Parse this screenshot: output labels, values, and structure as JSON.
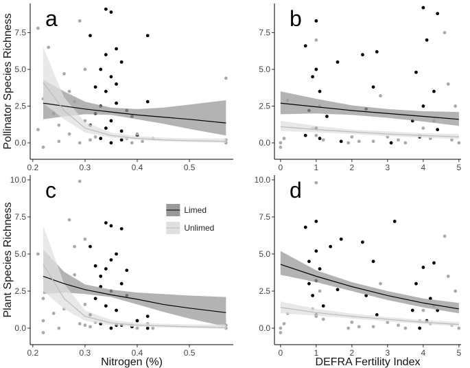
{
  "chart_data": [
    {
      "type": "scatter",
      "label": "a",
      "ylabel": "Pollinator Species Richness",
      "xlim": [
        0.195,
        0.584
      ],
      "xticks": [
        0.2,
        0.3,
        0.4,
        0.5
      ],
      "ylim": [
        -1.12,
        9.49
      ],
      "yticks": [
        {
          "value": 0,
          "label": "0.0"
        },
        2.5,
        {
          "value": 5,
          "label": "5.0"
        },
        7.5
      ],
      "series": [
        {
          "color": "#000000",
          "x": [
            0.31,
            0.32,
            0.33,
            0.33,
            0.34,
            0.34,
            0.34,
            0.35,
            0.35,
            0.35,
            0.36,
            0.36,
            0.37,
            0.37,
            0.38,
            0.32,
            0.31,
            0.34,
            0.36,
            0.39,
            0.4,
            0.42,
            0.42,
            0.33,
            0.35,
            0.37
          ],
          "values": [
            7.3,
            2.0,
            5.0,
            0.3,
            9.1,
            3.5,
            1.0,
            8.9,
            4.5,
            0.0,
            6.4,
            2.7,
            5.5,
            0.8,
            2.2,
            3.8,
            1.2,
            6.0,
            4.0,
            1.8,
            0.5,
            7.3,
            2.8,
            2.5,
            1.5,
            0.2
          ]
        },
        {
          "color": "#aaaaaa",
          "x": [
            0.21,
            0.21,
            0.22,
            0.22,
            0.23,
            0.24,
            0.25,
            0.26,
            0.27,
            0.27,
            0.28,
            0.29,
            0.29,
            0.3,
            0.3,
            0.31,
            0.32,
            0.38,
            0.39,
            0.4,
            0.41,
            0.43,
            0.57,
            0.57,
            0.57,
            0.25
          ],
          "values": [
            7.8,
            0.9,
            -0.3,
            3.0,
            6.5,
            2.0,
            0.1,
            4.7,
            3.5,
            0.6,
            2.8,
            8.3,
            0.0,
            5.0,
            1.5,
            0.2,
            0.4,
            0.3,
            0.0,
            0.6,
            0.1,
            0.3,
            0.0,
            0.2,
            4.4,
            1.2
          ]
        }
      ],
      "fits": [
        {
          "color": "#000000",
          "fill": "#9a9a9a",
          "x": [
            0.22,
            0.26,
            0.3,
            0.35,
            0.4,
            0.45,
            0.5,
            0.57
          ],
          "values": [
            2.7,
            2.5,
            2.3,
            2.1,
            1.9,
            1.75,
            1.6,
            1.35
          ],
          "lower": [
            1.6,
            1.8,
            1.95,
            1.9,
            1.6,
            1.3,
            0.95,
            0.5
          ],
          "upper": [
            4.3,
            3.5,
            2.8,
            2.4,
            2.3,
            2.4,
            2.6,
            2.9
          ]
        },
        {
          "color": "#bbbbbb",
          "fill": "#e0e0e0",
          "x": [
            0.22,
            0.26,
            0.3,
            0.35,
            0.4,
            0.45,
            0.5,
            0.57
          ],
          "values": [
            4.1,
            2.2,
            1.0,
            0.5,
            0.3,
            0.2,
            0.15,
            0.1
          ],
          "lower": [
            2.7,
            1.6,
            0.7,
            0.35,
            0.2,
            0.1,
            0.05,
            0.0
          ],
          "upper": [
            6.5,
            3.1,
            1.4,
            0.7,
            0.45,
            0.35,
            0.3,
            0.3
          ]
        }
      ]
    },
    {
      "type": "scatter",
      "label": "b",
      "xlim": [
        -0.17,
        5.06
      ],
      "xticks": [
        0,
        1,
        2,
        3,
        4,
        5
      ],
      "ylim": [
        -1.12,
        9.49
      ],
      "yticks": [
        {
          "value": 0,
          "label": "0.0"
        },
        2.5,
        {
          "value": 5,
          "label": "5.0"
        },
        7.5
      ],
      "series": [
        {
          "color": "#000000",
          "x": [
            0.7,
            0.7,
            0.8,
            0.9,
            1.0,
            1.0,
            1.0,
            1.1,
            1.1,
            1.3,
            1.6,
            1.7,
            2.3,
            2.4,
            2.6,
            2.7,
            3.1,
            3.7,
            3.8,
            3.9,
            4.0,
            4.0,
            4.1,
            4.3,
            4.4,
            4.4
          ],
          "values": [
            6.6,
            0.5,
            2.2,
            4.5,
            8.3,
            5.0,
            1.0,
            3.5,
            0.3,
            1.8,
            5.5,
            0.1,
            6.0,
            2.3,
            3.8,
            6.2,
            0.0,
            1.5,
            4.8,
            0.4,
            9.2,
            2.5,
            7.0,
            3.5,
            8.8,
            0.9
          ]
        },
        {
          "color": "#aaaaaa",
          "x": [
            0.0,
            0.1,
            0.0,
            0.9,
            1.0,
            1.1,
            1.2,
            1.9,
            2.0,
            2.6,
            2.8,
            3.3,
            3.5,
            3.9,
            4.2,
            4.3,
            4.6,
            4.7,
            4.8,
            4.9,
            5.0,
            1.0,
            0.2,
            3.0,
            4.0,
            2.2
          ],
          "values": [
            0.0,
            0.3,
            -0.3,
            1.0,
            7.0,
            2.5,
            0.2,
            0.0,
            0.4,
            0.1,
            3.2,
            0.2,
            0.0,
            0.5,
            0.3,
            1.5,
            7.5,
            4.0,
            0.2,
            2.5,
            0.0,
            0.5,
            2.9,
            0.4,
            1.0,
            0.1
          ]
        }
      ],
      "fits": [
        {
          "color": "#000000",
          "fill": "#9a9a9a",
          "x": [
            0,
            1,
            2,
            3,
            4,
            5
          ],
          "values": [
            2.7,
            2.45,
            2.2,
            2.0,
            1.8,
            1.6
          ],
          "lower": [
            1.95,
            2.0,
            1.9,
            1.7,
            1.45,
            1.15
          ],
          "upper": [
            3.5,
            3.0,
            2.55,
            2.3,
            2.15,
            2.1
          ]
        },
        {
          "color": "#bbbbbb",
          "fill": "#e0e0e0",
          "x": [
            0,
            1,
            2,
            3,
            4,
            5
          ],
          "values": [
            1.1,
            0.9,
            0.75,
            0.6,
            0.5,
            0.4
          ],
          "lower": [
            0.8,
            0.72,
            0.6,
            0.45,
            0.35,
            0.25
          ],
          "upper": [
            1.5,
            1.15,
            0.9,
            0.78,
            0.65,
            0.6
          ]
        }
      ]
    },
    {
      "type": "scatter",
      "label": "c",
      "ylabel": "Plant Species Richness",
      "xlabel": "Nitrogen (%)",
      "legend": "top-right",
      "xlim": [
        0.195,
        0.584
      ],
      "xticks": [
        0.2,
        0.3,
        0.4,
        0.5
      ],
      "ylim": [
        -1.11,
        10.32
      ],
      "yticks": [
        {
          "value": 0,
          "label": "0.0"
        },
        2.5,
        {
          "value": 5,
          "label": "5.0"
        },
        7.5,
        {
          "value": 10,
          "label": "10.0"
        }
      ],
      "series": [
        {
          "name": "Limed",
          "color": "#000000",
          "x": [
            0.31,
            0.32,
            0.33,
            0.33,
            0.34,
            0.34,
            0.35,
            0.35,
            0.35,
            0.36,
            0.36,
            0.37,
            0.37,
            0.38,
            0.32,
            0.34,
            0.36,
            0.38,
            0.4,
            0.42,
            0.42,
            0.33,
            0.35,
            0.37,
            0.31,
            0.39
          ],
          "values": [
            5.5,
            2.0,
            3.5,
            0.3,
            7.1,
            4.0,
            6.9,
            2.5,
            0.0,
            5.0,
            1.2,
            6.7,
            3.0,
            2.2,
            4.2,
            1.5,
            0.2,
            3.9,
            0.5,
            0.8,
            0.0,
            2.8,
            4.6,
            0.2,
            0.9,
            0.1
          ]
        },
        {
          "name": "Unlimed",
          "color": "#aaaaaa",
          "x": [
            0.21,
            0.22,
            0.22,
            0.23,
            0.24,
            0.25,
            0.26,
            0.27,
            0.28,
            0.29,
            0.29,
            0.3,
            0.3,
            0.31,
            0.32,
            0.39,
            0.4,
            0.42,
            0.43,
            0.57,
            0.57,
            0.26,
            0.28,
            0.24,
            0.3,
            0.22
          ],
          "values": [
            5.0,
            -0.3,
            2.0,
            4.8,
            1.0,
            0.0,
            2.7,
            7.3,
            3.6,
            9.9,
            0.3,
            6.0,
            1.6,
            0.1,
            0.4,
            0.2,
            0.0,
            0.3,
            0.0,
            0.0,
            0.2,
            1.3,
            5.5,
            3.2,
            0.2,
            0.5
          ]
        }
      ],
      "fits": [
        {
          "color": "#000000",
          "fill": "#9a9a9a",
          "x": [
            0.22,
            0.26,
            0.3,
            0.35,
            0.4,
            0.45,
            0.5,
            0.57
          ],
          "values": [
            3.5,
            3.0,
            2.6,
            2.25,
            1.95,
            1.6,
            1.35,
            1.05
          ],
          "lower": [
            2.3,
            2.4,
            2.3,
            2.1,
            1.6,
            1.1,
            0.65,
            0.1
          ],
          "upper": [
            5.3,
            3.8,
            2.95,
            2.6,
            2.4,
            2.3,
            2.2,
            2.1
          ]
        },
        {
          "color": "#bbbbbb",
          "fill": "#e0e0e0",
          "x": [
            0.22,
            0.26,
            0.3,
            0.35,
            0.4,
            0.45,
            0.5,
            0.57
          ],
          "values": [
            4.3,
            2.0,
            0.8,
            0.35,
            0.2,
            0.15,
            0.1,
            0.05
          ],
          "lower": [
            2.5,
            1.3,
            0.5,
            0.2,
            0.1,
            0.05,
            0.0,
            -0.05
          ],
          "upper": [
            6.9,
            3.0,
            1.2,
            0.55,
            0.35,
            0.3,
            0.25,
            0.25
          ]
        }
      ]
    },
    {
      "type": "scatter",
      "label": "d",
      "xlabel": "DEFRA Fertility Index",
      "xlim": [
        -0.17,
        5.06
      ],
      "xticks": [
        0,
        1,
        2,
        3,
        4,
        5
      ],
      "ylim": [
        -1.11,
        10.32
      ],
      "yticks": [
        {
          "value": 0,
          "label": "0.0"
        },
        2.5,
        {
          "value": 5,
          "label": "5.0"
        },
        7.5,
        {
          "value": 10,
          "label": "10.0"
        }
      ],
      "series": [
        {
          "color": "#000000",
          "x": [
            0.7,
            0.8,
            0.8,
            0.9,
            1.0,
            1.0,
            1.0,
            1.1,
            1.2,
            1.4,
            1.6,
            1.7,
            2.3,
            2.4,
            2.6,
            2.7,
            3.2,
            3.7,
            3.8,
            3.9,
            4.0,
            4.1,
            4.2,
            4.3,
            4.4,
            1.0
          ],
          "values": [
            6.8,
            3.0,
            4.5,
            2.2,
            7.2,
            5.2,
            0.9,
            4.0,
            1.5,
            5.5,
            2.6,
            6.0,
            5.8,
            2.2,
            4.5,
            0.9,
            7.2,
            1.2,
            3.0,
            0.0,
            4.1,
            0.5,
            2.0,
            4.4,
            1.2,
            3.2
          ]
        },
        {
          "color": "#aaaaaa",
          "x": [
            0.0,
            0.1,
            0.0,
            0.9,
            1.0,
            1.1,
            1.2,
            1.9,
            2.0,
            2.6,
            2.8,
            3.3,
            3.5,
            3.9,
            4.2,
            4.3,
            4.6,
            4.7,
            4.8,
            4.9,
            5.0,
            1.0,
            0.2,
            3.0,
            4.0,
            2.2
          ],
          "values": [
            0.0,
            0.3,
            -0.3,
            1.3,
            9.8,
            2.5,
            0.6,
            0.0,
            0.4,
            0.1,
            3.0,
            0.2,
            0.0,
            0.5,
            0.3,
            1.5,
            6.2,
            3.5,
            0.2,
            2.5,
            0.0,
            0.8,
            1.0,
            0.4,
            1.2,
            0.1
          ]
        }
      ],
      "fits": [
        {
          "color": "#000000",
          "fill": "#9a9a9a",
          "x": [
            0,
            1,
            2,
            3,
            4,
            5
          ],
          "values": [
            4.3,
            3.5,
            2.8,
            2.2,
            1.7,
            1.3
          ],
          "lower": [
            3.6,
            3.1,
            2.5,
            1.9,
            1.4,
            1.0
          ],
          "upper": [
            5.2,
            3.9,
            3.1,
            2.5,
            2.0,
            1.7
          ]
        },
        {
          "color": "#bbbbbb",
          "fill": "#e0e0e0",
          "x": [
            0,
            1,
            2,
            3,
            4,
            5
          ],
          "values": [
            1.4,
            1.05,
            0.8,
            0.6,
            0.4,
            0.25
          ],
          "lower": [
            1.0,
            0.85,
            0.65,
            0.45,
            0.28,
            0.12
          ],
          "upper": [
            1.8,
            1.3,
            0.98,
            0.75,
            0.55,
            0.42
          ]
        }
      ]
    }
  ]
}
